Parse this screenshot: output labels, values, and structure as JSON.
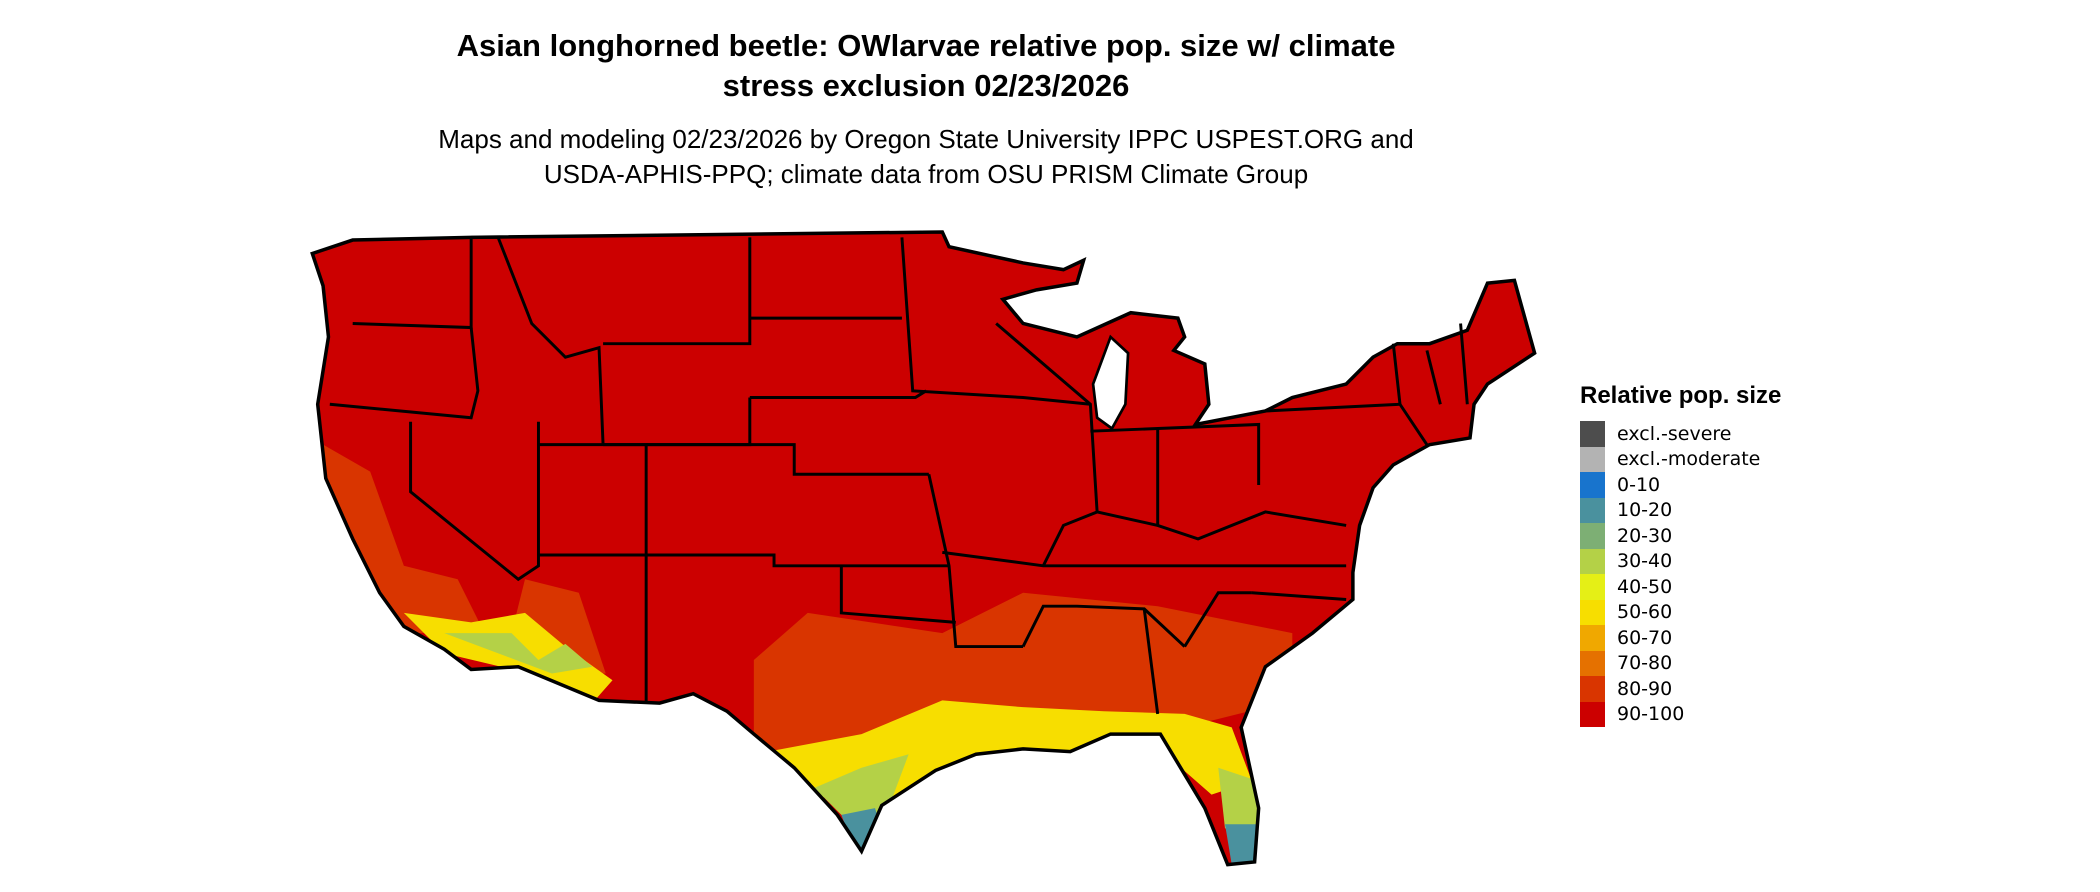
{
  "title": {
    "line1": "Asian longhorned beetle: OWlarvae relative pop. size w/ climate",
    "line2": "stress exclusion 02/23/2026"
  },
  "subtitle": {
    "line1": "Maps and modeling 02/23/2026 by Oregon State University IPPC USPEST.ORG and",
    "line2": "USDA-APHIS-PPQ; climate data from OSU PRISM Climate Group"
  },
  "map": {
    "region": "Contiguous United States",
    "dominant_class": "90-100",
    "border_color": "#000000"
  },
  "legend": {
    "title": "Relative pop. size",
    "items": [
      {
        "label": "excl.-severe",
        "color": "#4d4d4d"
      },
      {
        "label": "excl.-moderate",
        "color": "#b3b3b3"
      },
      {
        "label": "0-10",
        "color": "#1874cd"
      },
      {
        "label": "10-20",
        "color": "#4a919e"
      },
      {
        "label": "20-30",
        "color": "#7daf74"
      },
      {
        "label": "30-40",
        "color": "#b4d147"
      },
      {
        "label": "40-50",
        "color": "#e5ef16"
      },
      {
        "label": "50-60",
        "color": "#f7de00"
      },
      {
        "label": "60-70",
        "color": "#f0a800"
      },
      {
        "label": "70-80",
        "color": "#e57100"
      },
      {
        "label": "80-90",
        "color": "#d93500"
      },
      {
        "label": "90-100",
        "color": "#cc0000"
      }
    ]
  }
}
